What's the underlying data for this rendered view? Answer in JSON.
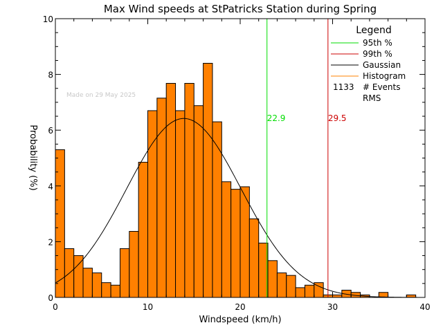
{
  "chart_data": {
    "type": "bar",
    "title": "Max Wind speeds at StPatricks Station during Spring",
    "xlabel": "Windspeed (km/h)",
    "ylabel": "Probability (%)",
    "xlim": [
      0,
      40
    ],
    "ylim": [
      0,
      10
    ],
    "xticks": [
      0,
      10,
      20,
      30,
      40
    ],
    "yticks": [
      0,
      2,
      4,
      6,
      8,
      10
    ],
    "annotation": "Made on 29 May 2025",
    "bin_width": 1,
    "bin_starts": [
      0,
      1,
      2,
      3,
      4,
      5,
      6,
      7,
      8,
      9,
      10,
      11,
      12,
      13,
      14,
      15,
      16,
      17,
      18,
      19,
      20,
      21,
      22,
      23,
      24,
      25,
      26,
      27,
      28,
      29,
      30,
      31,
      32,
      33,
      34,
      35,
      36,
      37,
      38
    ],
    "values": [
      5.3,
      1.75,
      1.5,
      1.05,
      0.88,
      0.53,
      0.44,
      1.75,
      2.37,
      4.85,
      6.7,
      7.15,
      7.68,
      6.7,
      7.68,
      6.88,
      8.4,
      6.3,
      4.15,
      3.88,
      3.97,
      2.82,
      1.95,
      1.32,
      0.88,
      0.79,
      0.35,
      0.44,
      0.53,
      0.09,
      0.09,
      0.26,
      0.18,
      0.09,
      0.0,
      0.18,
      0.0,
      0.0,
      0.09
    ],
    "series": [
      {
        "name": "95th %",
        "value": 22.9,
        "label": "22.9",
        "color": "#00dd00"
      },
      {
        "name": "99th %",
        "value": 29.5,
        "label": "29.5",
        "color": "#cc0000"
      },
      {
        "name": "Gaussian",
        "mean": 13.9,
        "sigma": 6.2,
        "peak": 6.42,
        "color": "#000000"
      },
      {
        "name": "Histogram",
        "color": "#ff8000"
      }
    ],
    "legend": {
      "title": "Legend",
      "position": "top-right",
      "events_count": "1133",
      "events_label": "# Events",
      "rms_label": "RMS"
    },
    "colors": {
      "histogram_fill": "#ff8000",
      "histogram_edge": "#000000",
      "p95": "#00dd00",
      "p99": "#cc0000",
      "gaussian": "#000000",
      "annotation": "#c8c8c8"
    }
  }
}
